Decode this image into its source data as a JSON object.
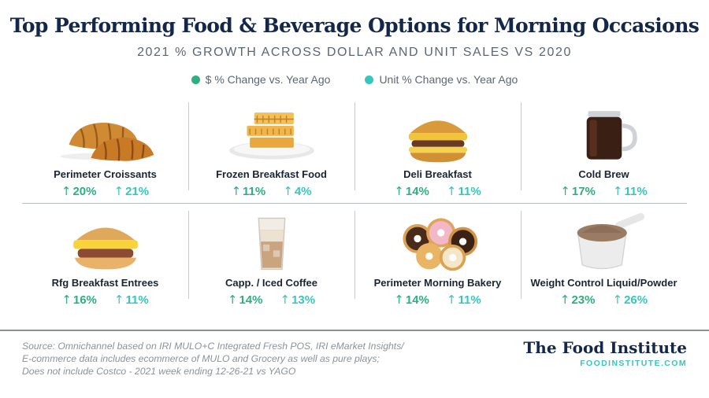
{
  "title": "Top Performing Food & Beverage Options for Morning Occasions",
  "subtitle": "2021 % GROWTH ACROSS DOLLAR AND UNIT SALES VS 2020",
  "legend": [
    {
      "label": "$ % Change vs. Year Ago",
      "color": "#2fae7f"
    },
    {
      "label": "Unit % Change vs. Year Ago",
      "color": "#36c6bf"
    }
  ],
  "arrow_glyph": "↑",
  "chart_data": {
    "type": "table",
    "series": [
      {
        "name": "$ % Change vs. Year Ago",
        "color": "#2fae7f",
        "values": [
          20,
          11,
          14,
          17,
          16,
          14,
          14,
          23
        ]
      },
      {
        "name": "Unit % Change vs. Year Ago",
        "color": "#36c6bf",
        "values": [
          21,
          4,
          11,
          11,
          11,
          13,
          11,
          26
        ]
      }
    ],
    "categories": [
      "Perimeter Croissants",
      "Frozen Breakfast Food",
      "Deli Breakfast",
      "Cold Brew",
      "Rfg Breakfast Entrees",
      "Capp. / Iced Coffee",
      "Perimeter Morning Bakery",
      "Weight Control Liquid/Powder"
    ],
    "items": [
      {
        "label": "Perimeter Croissants",
        "dollar": "20%",
        "unit": "21%",
        "icon": "croissant-icon"
      },
      {
        "label": "Frozen Breakfast Food",
        "dollar": "11%",
        "unit": "4%",
        "icon": "waffles-icon"
      },
      {
        "label": "Deli Breakfast",
        "dollar": "14%",
        "unit": "11%",
        "icon": "breakfast-sandwich-icon"
      },
      {
        "label": "Cold Brew",
        "dollar": "17%",
        "unit": "11%",
        "icon": "cold-brew-jar-icon"
      },
      {
        "label": "Rfg Breakfast Entrees",
        "dollar": "16%",
        "unit": "11%",
        "icon": "biscuit-sandwich-icon"
      },
      {
        "label": "Capp. / Iced Coffee",
        "dollar": "14%",
        "unit": "13%",
        "icon": "iced-coffee-icon"
      },
      {
        "label": "Perimeter Morning Bakery",
        "dollar": "14%",
        "unit": "11%",
        "icon": "donuts-icon"
      },
      {
        "label": "Weight Control Liquid/Powder",
        "dollar": "23%",
        "unit": "26%",
        "icon": "protein-powder-scoop-icon"
      }
    ]
  },
  "source_lines": [
    "Source: Omnichannel based on IRI MULO+C Integrated Fresh POS, IRI eMarket Insights/",
    "E-commerce data includes ecommerce of MULO and Grocery as well as pure plays;",
    "Does not include Costco - 2021 week ending 12-26-21 vs YAGO"
  ],
  "brand": {
    "name": "The Food Institute",
    "url": "FOODINSTITUTE.COM"
  }
}
